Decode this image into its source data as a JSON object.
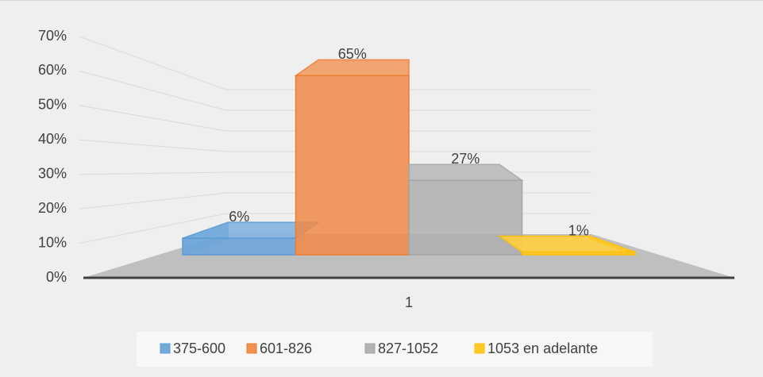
{
  "chart_data": {
    "type": "bar3d",
    "categories": [
      "1"
    ],
    "series": [
      {
        "name": "375-600",
        "color": "#5b9bd5",
        "values": [
          6
        ],
        "value_labels": [
          "6%"
        ]
      },
      {
        "name": "601-826",
        "color": "#ed7d31",
        "values": [
          65
        ],
        "value_labels": [
          "65%"
        ]
      },
      {
        "name": "827-1052",
        "color": "#a5a5a5",
        "values": [
          27
        ],
        "value_labels": [
          "27%"
        ]
      },
      {
        "name": "1053 en adelante",
        "color": "#ffc000",
        "values": [
          1
        ],
        "value_labels": [
          "1%"
        ]
      }
    ],
    "ylim": [
      0,
      70
    ],
    "yticks": [
      {
        "value": 0,
        "label": "0%"
      },
      {
        "value": 10,
        "label": "10%"
      },
      {
        "value": 20,
        "label": "20%"
      },
      {
        "value": 30,
        "label": "30%"
      },
      {
        "value": 40,
        "label": "40%"
      },
      {
        "value": 50,
        "label": "50%"
      },
      {
        "value": 60,
        "label": "60%"
      },
      {
        "value": 70,
        "label": "70%"
      }
    ],
    "grid": true,
    "legend": "bottom"
  }
}
